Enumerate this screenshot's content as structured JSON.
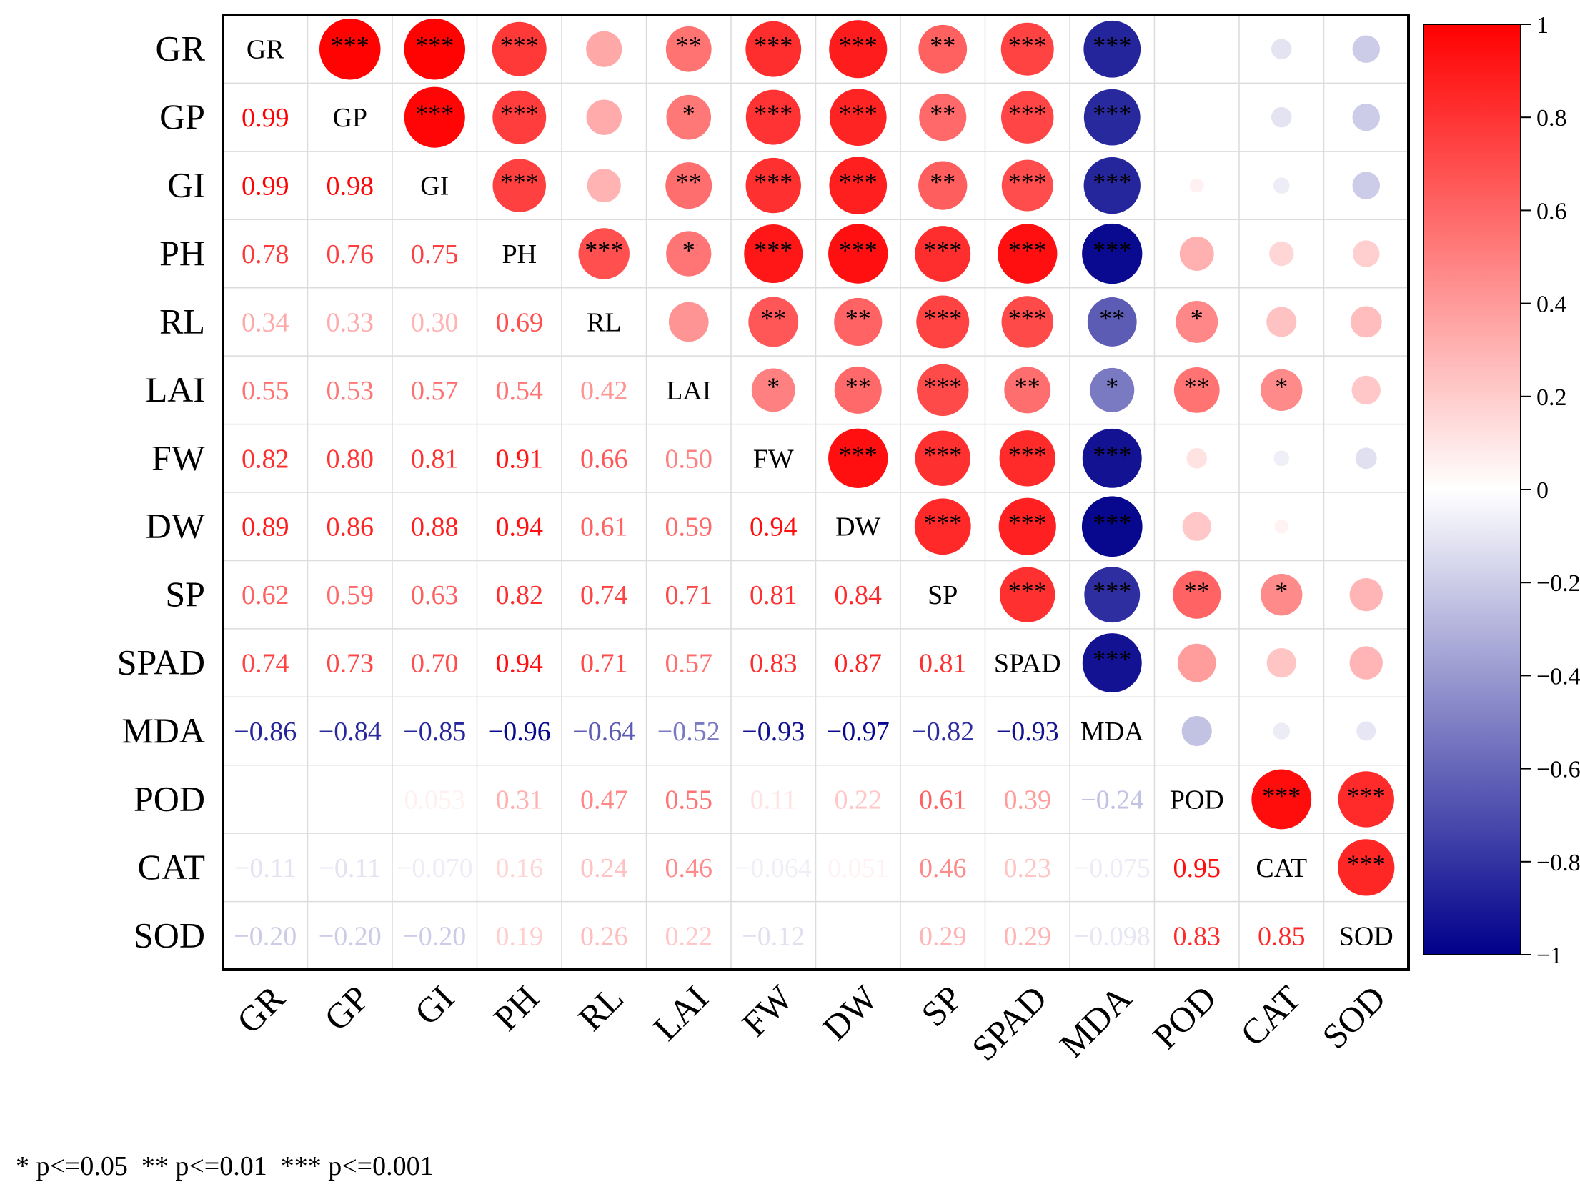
{
  "chart_data": {
    "type": "heatmap",
    "subtype": "correlation matrix (lower: coefficients, upper: circles with significance stars)",
    "variables": [
      "GR",
      "GP",
      "GI",
      "PH",
      "RL",
      "LAI",
      "FW",
      "DW",
      "SP",
      "SPAD",
      "MDA",
      "POD",
      "CAT",
      "SOD"
    ],
    "labels": [
      [
        "GR",
        "",
        "",
        "",
        "",
        "",
        "",
        "",
        "",
        "",
        "",
        "",
        "",
        ""
      ],
      [
        "0.99",
        "GP",
        "",
        "",
        "",
        "",
        "",
        "",
        "",
        "",
        "",
        "",
        "",
        ""
      ],
      [
        "0.99",
        "0.98",
        "GI",
        "",
        "",
        "",
        "",
        "",
        "",
        "",
        "",
        "",
        "",
        ""
      ],
      [
        "0.78",
        "0.76",
        "0.75",
        "PH",
        "",
        "",
        "",
        "",
        "",
        "",
        "",
        "",
        "",
        ""
      ],
      [
        "0.34",
        "0.33",
        "0.30",
        "0.69",
        "RL",
        "",
        "",
        "",
        "",
        "",
        "",
        "",
        "",
        ""
      ],
      [
        "0.55",
        "0.53",
        "0.57",
        "0.54",
        "0.42",
        "LAI",
        "",
        "",
        "",
        "",
        "",
        "",
        "",
        ""
      ],
      [
        "0.82",
        "0.80",
        "0.81",
        "0.91",
        "0.66",
        "0.50",
        "FW",
        "",
        "",
        "",
        "",
        "",
        "",
        ""
      ],
      [
        "0.89",
        "0.86",
        "0.88",
        "0.94",
        "0.61",
        "0.59",
        "0.94",
        "DW",
        "",
        "",
        "",
        "",
        "",
        ""
      ],
      [
        "0.62",
        "0.59",
        "0.63",
        "0.82",
        "0.74",
        "0.71",
        "0.81",
        "0.84",
        "SP",
        "",
        "",
        "",
        "",
        ""
      ],
      [
        "0.74",
        "0.73",
        "0.70",
        "0.94",
        "0.71",
        "0.57",
        "0.83",
        "0.87",
        "0.81",
        "SPAD",
        "",
        "",
        "",
        ""
      ],
      [
        "−0.86",
        "−0.84",
        "−0.85",
        "−0.96",
        "−0.64",
        "−0.52",
        "−0.93",
        "−0.97",
        "−0.82",
        "−0.93",
        "MDA",
        "",
        "",
        ""
      ],
      [
        "",
        "",
        "0.053",
        "0.31",
        "0.47",
        "0.55",
        "0.11",
        "0.22",
        "0.61",
        "0.39",
        "−0.24",
        "POD",
        "",
        ""
      ],
      [
        "−0.11",
        "−0.11",
        "−0.070",
        "0.16",
        "0.24",
        "0.46",
        "−0.064",
        "0.051",
        "0.46",
        "0.23",
        "−0.075",
        "0.95",
        "CAT",
        ""
      ],
      [
        "−0.20",
        "−0.20",
        "−0.20",
        "0.19",
        "0.26",
        "0.22",
        "−0.12",
        "",
        "0.29",
        "0.29",
        "−0.098",
        "0.83",
        "0.85",
        "SOD"
      ]
    ],
    "matrix": [
      [
        1,
        0.99,
        0.99,
        0.78,
        0.34,
        0.55,
        0.82,
        0.89,
        0.62,
        0.74,
        -0.86,
        0.005,
        -0.11,
        -0.2
      ],
      [
        0.99,
        1,
        0.98,
        0.76,
        0.33,
        0.53,
        0.8,
        0.86,
        0.59,
        0.73,
        -0.84,
        0.005,
        -0.11,
        -0.2
      ],
      [
        0.99,
        0.98,
        1,
        0.75,
        0.3,
        0.57,
        0.81,
        0.88,
        0.63,
        0.7,
        -0.85,
        0.053,
        -0.07,
        -0.2
      ],
      [
        0.78,
        0.76,
        0.75,
        1,
        0.69,
        0.54,
        0.91,
        0.94,
        0.82,
        0.94,
        -0.96,
        0.31,
        0.16,
        0.19
      ],
      [
        0.34,
        0.33,
        0.3,
        0.69,
        1,
        0.42,
        0.66,
        0.61,
        0.74,
        0.71,
        -0.64,
        0.47,
        0.24,
        0.26
      ],
      [
        0.55,
        0.53,
        0.57,
        0.54,
        0.42,
        1,
        0.5,
        0.59,
        0.71,
        0.57,
        -0.52,
        0.55,
        0.46,
        0.22
      ],
      [
        0.82,
        0.8,
        0.81,
        0.91,
        0.66,
        0.5,
        1,
        0.94,
        0.81,
        0.83,
        -0.93,
        0.11,
        -0.064,
        -0.12
      ],
      [
        0.89,
        0.86,
        0.88,
        0.94,
        0.61,
        0.59,
        0.94,
        1,
        0.84,
        0.87,
        -0.97,
        0.22,
        0.051,
        0.005
      ],
      [
        0.62,
        0.59,
        0.63,
        0.82,
        0.74,
        0.71,
        0.81,
        0.84,
        1,
        0.81,
        -0.82,
        0.61,
        0.46,
        0.29
      ],
      [
        0.74,
        0.73,
        0.7,
        0.94,
        0.71,
        0.57,
        0.83,
        0.87,
        0.81,
        1,
        -0.93,
        0.39,
        0.23,
        0.29
      ],
      [
        -0.86,
        -0.84,
        -0.85,
        -0.96,
        -0.64,
        -0.52,
        -0.93,
        -0.97,
        -0.82,
        -0.93,
        1,
        -0.24,
        -0.075,
        -0.098
      ],
      [
        0.005,
        0.005,
        0.053,
        0.31,
        0.47,
        0.55,
        0.11,
        0.22,
        0.61,
        0.39,
        -0.24,
        1,
        0.95,
        0.83
      ],
      [
        -0.11,
        -0.11,
        -0.07,
        0.16,
        0.24,
        0.46,
        -0.064,
        0.051,
        0.46,
        0.23,
        -0.075,
        0.95,
        1,
        0.85
      ],
      [
        -0.2,
        -0.2,
        -0.2,
        0.19,
        0.26,
        0.22,
        -0.12,
        0.005,
        0.29,
        0.29,
        -0.098,
        0.83,
        0.85,
        1
      ]
    ],
    "significance": [
      [
        "",
        "***",
        "***",
        "***",
        "",
        "**",
        "***",
        "***",
        "**",
        "***",
        "***",
        "",
        "",
        ""
      ],
      [
        "***",
        "",
        "***",
        "***",
        "",
        "*",
        "***",
        "***",
        "**",
        "***",
        "***",
        "",
        "",
        ""
      ],
      [
        "***",
        "***",
        "",
        "***",
        "",
        "**",
        "***",
        "***",
        "**",
        "***",
        "***",
        "",
        "",
        ""
      ],
      [
        "***",
        "***",
        "***",
        "",
        "***",
        "*",
        "***",
        "***",
        "***",
        "***",
        "***",
        "",
        "",
        ""
      ],
      [
        "",
        "",
        "",
        "***",
        "",
        "",
        "**",
        "**",
        "***",
        "***",
        "**",
        "*",
        "",
        ""
      ],
      [
        "**",
        "*",
        "**",
        "*",
        "",
        "",
        "*",
        "**",
        "***",
        "**",
        "*",
        "**",
        "*",
        ""
      ],
      [
        "***",
        "***",
        "***",
        "***",
        "**",
        "*",
        "",
        "***",
        "***",
        "***",
        "***",
        "",
        "",
        ""
      ],
      [
        "***",
        "***",
        "***",
        "***",
        "**",
        "**",
        "***",
        "",
        "***",
        "***",
        "***",
        "",
        "",
        ""
      ],
      [
        "**",
        "**",
        "**",
        "***",
        "***",
        "***",
        "***",
        "***",
        "",
        "***",
        "***",
        "**",
        "*",
        ""
      ],
      [
        "***",
        "***",
        "***",
        "***",
        "***",
        "**",
        "***",
        "***",
        "***",
        "",
        "***",
        "",
        "",
        ""
      ],
      [
        "***",
        "***",
        "***",
        "***",
        "**",
        "*",
        "***",
        "***",
        "***",
        "***",
        "",
        "",
        "",
        ""
      ],
      [
        "",
        "",
        "",
        "",
        "*",
        "**",
        "",
        "",
        "**",
        "",
        "",
        "",
        "***",
        "***"
      ],
      [
        "",
        "",
        "",
        "",
        "",
        "*",
        "",
        "",
        "*",
        "",
        "",
        "***",
        "",
        "***"
      ],
      [
        "",
        "",
        "",
        "",
        "",
        "",
        "",
        "",
        "",
        "",
        "",
        "***",
        "***",
        ""
      ]
    ],
    "colorbar": {
      "ticks": [
        "1",
        "0.8",
        "0.6",
        "0.4",
        "0.2",
        "0",
        "−0.2",
        "−0.4",
        "−0.6",
        "−0.8",
        "−1"
      ],
      "tick_values": [
        1,
        0.8,
        0.6,
        0.4,
        0.2,
        0,
        -0.2,
        -0.4,
        -0.6,
        -0.8,
        -1
      ],
      "range": [
        -1,
        1
      ],
      "colors": {
        "positive": "#ff0000",
        "zero": "#ffffff",
        "negative": "#00008b"
      }
    },
    "footnote": "* p<=0.05  ** p<=0.01  *** p<=0.001"
  }
}
